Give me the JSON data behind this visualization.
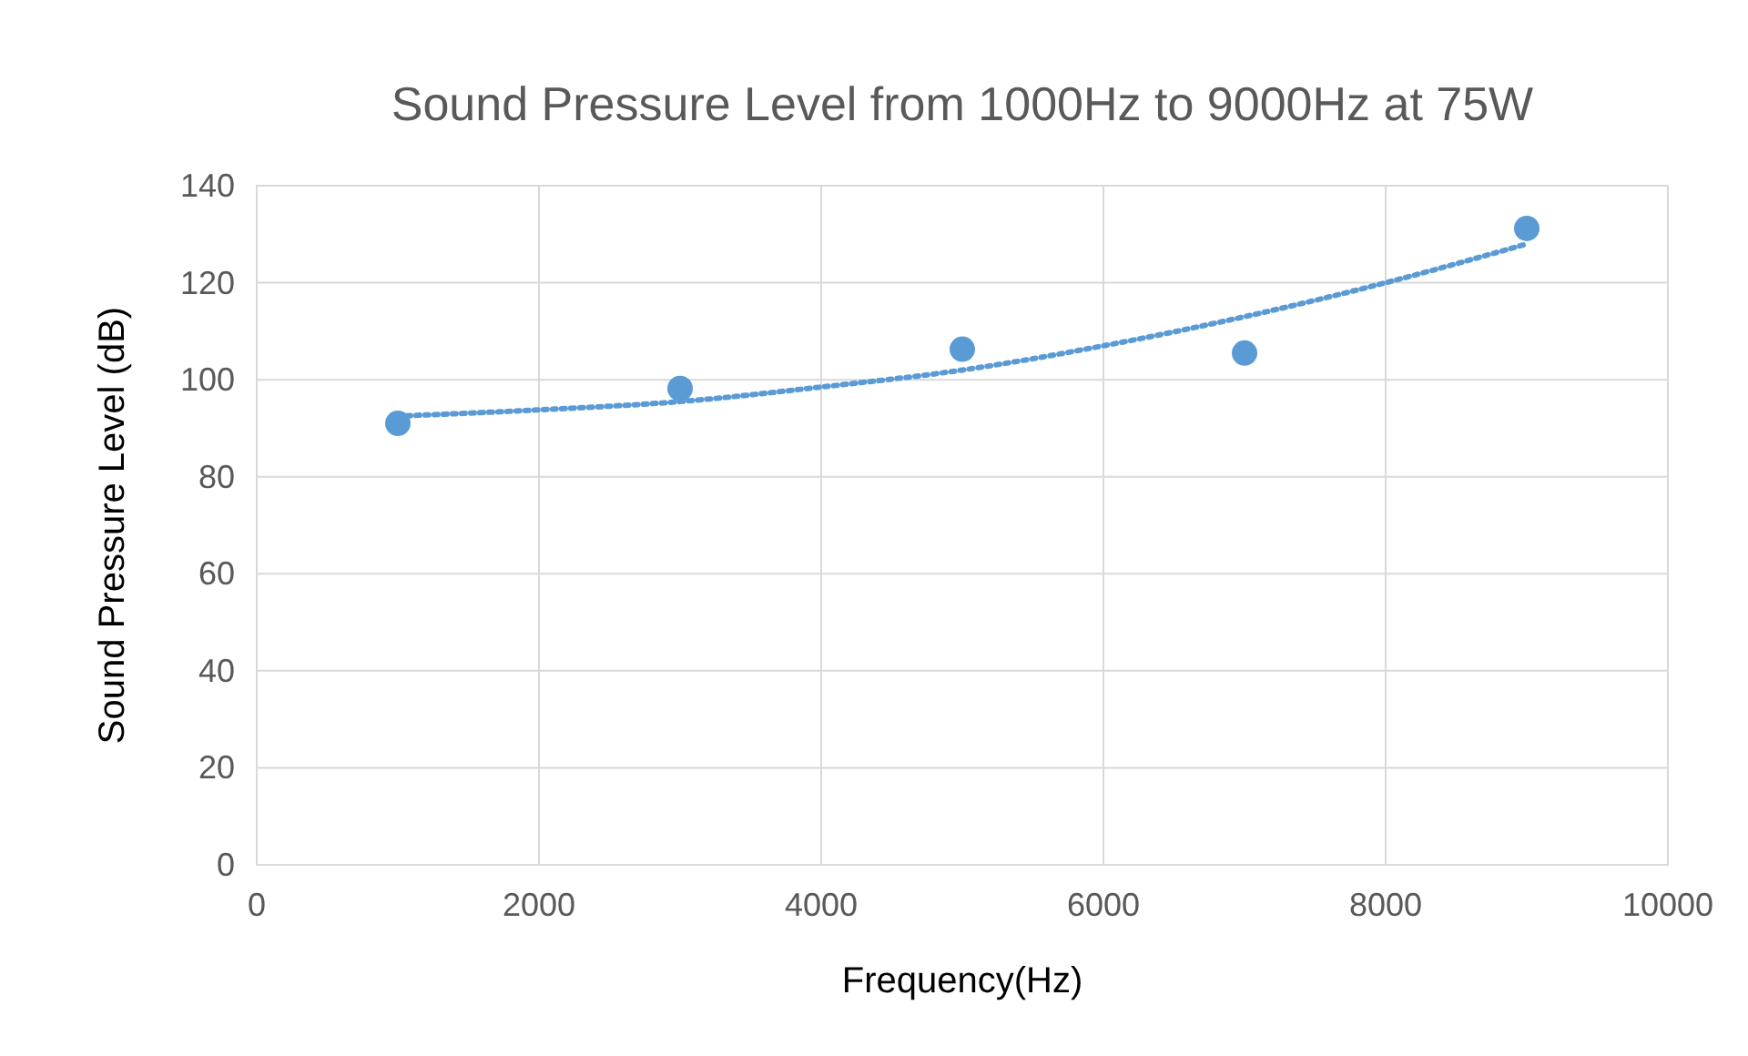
{
  "chart_data": {
    "type": "scatter",
    "title": "Sound Pressure Level from 1000Hz to 9000Hz at 75W",
    "xlabel": "Frequency(Hz)",
    "ylabel": "Sound Pressure Level (dB)",
    "x": [
      1000,
      3000,
      5000,
      7000,
      9000
    ],
    "series": [
      {
        "color": "#5b9bd5",
        "marker": "circle",
        "values": [
          91,
          98.2,
          106.3,
          105.5,
          131.2
        ]
      },
      {
        "type": "line",
        "color": "#5b9bd5",
        "marker": "none",
        "line_style": "dotted",
        "x": [
          1000,
          2000,
          3000,
          4000,
          5000,
          6000,
          7000,
          8000,
          9000
        ],
        "values": [
          92.5,
          93.8,
          95.5,
          98.5,
          102,
          107,
          113,
          120,
          128
        ]
      }
    ],
    "xlim": [
      0,
      10000
    ],
    "xticks": [
      0,
      2000,
      4000,
      6000,
      8000,
      10000
    ],
    "ylim": [
      0,
      140
    ],
    "yticks": [
      0,
      20,
      40,
      60,
      80,
      100,
      120,
      140
    ],
    "grid": true
  }
}
